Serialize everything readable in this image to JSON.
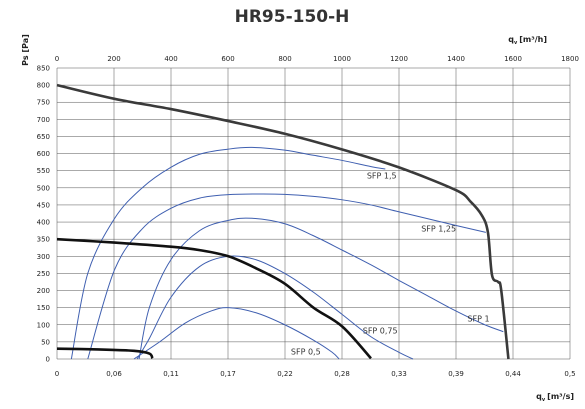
{
  "chart_data": {
    "type": "line",
    "title": "HR95-150-H",
    "ylabel": "Ps [Pa]",
    "xlabel_bottom": "q",
    "xlabel_bottom_sub": "v",
    "xlabel_bottom_unit": "[m³/s]",
    "xlabel_top": "q",
    "xlabel_top_sub": "v",
    "xlabel_top_unit": "[m³/h]",
    "xlim": [
      0,
      0.5
    ],
    "ylim": [
      0,
      850
    ],
    "grid": true,
    "x_ticks_bottom": [
      "0",
      "0,06",
      "0,11",
      "0,17",
      "0,22",
      "0,28",
      "0,33",
      "0,39",
      "0,44",
      "0,5"
    ],
    "x_ticks_top": [
      "0",
      "200",
      "400",
      "600",
      "800",
      "1000",
      "1200",
      "1400",
      "1600",
      "1800"
    ],
    "y_ticks": [
      "0",
      "50",
      "100",
      "150",
      "200",
      "250",
      "300",
      "350",
      "400",
      "450",
      "500",
      "550",
      "600",
      "650",
      "700",
      "750",
      "800",
      "850"
    ],
    "fan_curves": [
      {
        "name": "max",
        "color": "#3a3a3a",
        "points": [
          [
            0,
            800
          ],
          [
            0.056,
            760
          ],
          [
            0.111,
            730
          ],
          [
            0.167,
            695
          ],
          [
            0.222,
            658
          ],
          [
            0.278,
            612
          ],
          [
            0.333,
            560
          ],
          [
            0.389,
            493
          ],
          [
            0.403,
            460
          ],
          [
            0.414,
            420
          ],
          [
            0.42,
            370
          ],
          [
            0.424,
            245
          ],
          [
            0.43,
            225
          ],
          [
            0.433,
            200
          ],
          [
            0.44,
            0
          ]
        ]
      },
      {
        "name": "mid",
        "color": "#111111",
        "points": [
          [
            0,
            350
          ],
          [
            0.056,
            340
          ],
          [
            0.111,
            328
          ],
          [
            0.139,
            318
          ],
          [
            0.167,
            300
          ],
          [
            0.194,
            265
          ],
          [
            0.222,
            220
          ],
          [
            0.25,
            150
          ],
          [
            0.278,
            95
          ],
          [
            0.306,
            2
          ]
        ]
      },
      {
        "name": "min",
        "color": "#111111",
        "points": [
          [
            0,
            30
          ],
          [
            0.04,
            28
          ],
          [
            0.075,
            24
          ],
          [
            0.09,
            16
          ],
          [
            0.093,
            2
          ]
        ]
      }
    ],
    "sfp_curves": [
      {
        "label": "SFP 1,5",
        "label_x": 0.302,
        "label_y": 527,
        "points": [
          [
            0.014,
            0
          ],
          [
            0.03,
            250
          ],
          [
            0.056,
            410
          ],
          [
            0.083,
            500
          ],
          [
            0.111,
            560
          ],
          [
            0.139,
            598
          ],
          [
            0.167,
            613
          ],
          [
            0.19,
            618
          ],
          [
            0.222,
            610
          ],
          [
            0.25,
            595
          ],
          [
            0.278,
            580
          ],
          [
            0.306,
            562
          ],
          [
            0.32,
            555
          ]
        ]
      },
      {
        "label": "SFP 1,25",
        "label_x": 0.355,
        "label_y": 372,
        "points": [
          [
            0.03,
            0
          ],
          [
            0.056,
            260
          ],
          [
            0.083,
            380
          ],
          [
            0.111,
            440
          ],
          [
            0.139,
            470
          ],
          [
            0.167,
            480
          ],
          [
            0.194,
            482
          ],
          [
            0.222,
            481
          ],
          [
            0.25,
            475
          ],
          [
            0.278,
            465
          ],
          [
            0.306,
            450
          ],
          [
            0.333,
            430
          ],
          [
            0.361,
            410
          ],
          [
            0.389,
            390
          ],
          [
            0.418,
            370
          ]
        ]
      },
      {
        "label": "SFP 1",
        "label_x": 0.4,
        "label_y": 110,
        "points": [
          [
            0.08,
            0
          ],
          [
            0.09,
            150
          ],
          [
            0.111,
            290
          ],
          [
            0.139,
            375
          ],
          [
            0.167,
            405
          ],
          [
            0.19,
            411
          ],
          [
            0.222,
            395
          ],
          [
            0.25,
            360
          ],
          [
            0.278,
            318
          ],
          [
            0.306,
            275
          ],
          [
            0.333,
            230
          ],
          [
            0.361,
            185
          ],
          [
            0.389,
            140
          ],
          [
            0.417,
            100
          ],
          [
            0.435,
            80
          ]
        ]
      },
      {
        "label": "SFP 0,75",
        "label_x": 0.298,
        "label_y": 75,
        "points": [
          [
            0.078,
            0
          ],
          [
            0.09,
            60
          ],
          [
            0.111,
            180
          ],
          [
            0.139,
            270
          ],
          [
            0.167,
            300
          ],
          [
            0.194,
            290
          ],
          [
            0.222,
            250
          ],
          [
            0.25,
            195
          ],
          [
            0.278,
            130
          ],
          [
            0.306,
            65
          ],
          [
            0.333,
            20
          ],
          [
            0.347,
            0
          ]
        ]
      },
      {
        "label": "SFP 0,5",
        "label_x": 0.228,
        "label_y": 13,
        "points": [
          [
            0.075,
            0
          ],
          [
            0.1,
            50
          ],
          [
            0.125,
            105
          ],
          [
            0.15,
            140
          ],
          [
            0.167,
            150
          ],
          [
            0.194,
            135
          ],
          [
            0.222,
            100
          ],
          [
            0.25,
            55
          ],
          [
            0.268,
            20
          ],
          [
            0.275,
            0
          ]
        ]
      }
    ]
  },
  "colors": {
    "sfp": "#3f5fb0",
    "grid": "#555555",
    "axis": "#222222"
  }
}
